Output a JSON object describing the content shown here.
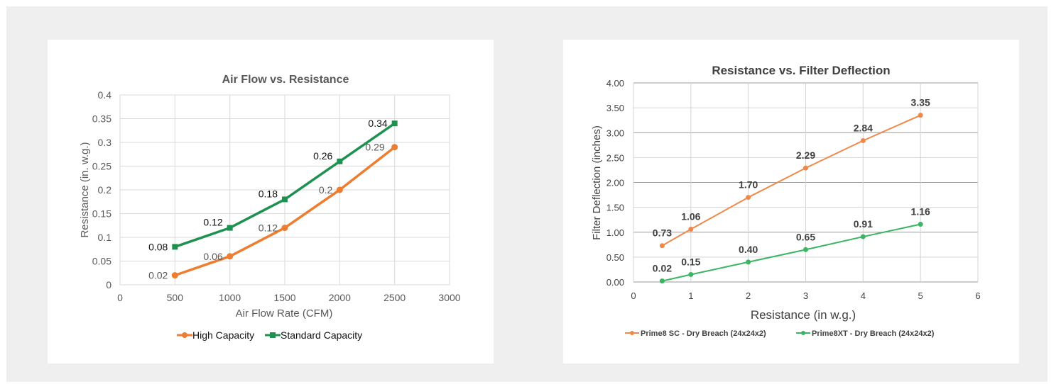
{
  "chart_data": [
    {
      "type": "line",
      "title": "Air Flow vs. Resistance",
      "xlabel": "Air Flow Rate (CFM)",
      "ylabel": "Resistance (in. w.g.)",
      "xlim": [
        0,
        3000
      ],
      "ylim": [
        0,
        0.4
      ],
      "xticks": [
        "0",
        "500",
        "1000",
        "1500",
        "2000",
        "2500",
        "3000"
      ],
      "yticks": [
        "0",
        "0.05",
        "0.1",
        "0.15",
        "0.2",
        "0.25",
        "0.3",
        "0.35",
        "0.4"
      ],
      "grid": true,
      "legend_position": "bottom",
      "series": [
        {
          "name": "High Capacity",
          "color": "#ed7d31",
          "marker": "circle",
          "x": [
            500,
            1000,
            1500,
            2000,
            2500
          ],
          "y": [
            0.02,
            0.06,
            0.12,
            0.2,
            0.29
          ],
          "labels": [
            "0.02",
            "0.06",
            "0.12",
            "0.2",
            "0.29"
          ]
        },
        {
          "name": "Standard Capacity",
          "color": "#1e9150",
          "marker": "square",
          "x": [
            500,
            1000,
            1500,
            2000,
            2500
          ],
          "y": [
            0.08,
            0.12,
            0.18,
            0.26,
            0.34
          ],
          "labels": [
            "0.08",
            "0.12",
            "0.18",
            "0.26",
            "0.34"
          ]
        }
      ]
    },
    {
      "type": "line",
      "title": "Resistance vs. Filter Deflection",
      "xlabel": "Resistance (in w.g.)",
      "ylabel": "Filter Deflection (inches)",
      "xlim": [
        0,
        6
      ],
      "ylim": [
        0,
        4
      ],
      "xticks": [
        "0",
        "1",
        "2",
        "3",
        "4",
        "5",
        "6"
      ],
      "yticks": [
        "0.00",
        "0.50",
        "1.00",
        "1.50",
        "2.00",
        "2.50",
        "3.00",
        "3.50",
        "4.00"
      ],
      "grid": true,
      "legend_position": "bottom",
      "series": [
        {
          "name": "Prime8 SC - Dry Breach (24x24x2)",
          "color": "#f0884a",
          "marker": "circle",
          "x": [
            0.5,
            1,
            2,
            3,
            4,
            5
          ],
          "y": [
            0.73,
            1.06,
            1.7,
            2.29,
            2.84,
            3.35
          ],
          "labels": [
            "0.73",
            "1.06",
            "1.70",
            "2.29",
            "2.84",
            "3.35"
          ]
        },
        {
          "name": "Prime8XT - Dry Breach (24x24x2)",
          "color": "#3cb563",
          "marker": "circle",
          "x": [
            0.5,
            1,
            2,
            3,
            4,
            5
          ],
          "y": [
            0.02,
            0.15,
            0.4,
            0.65,
            0.91,
            1.16
          ],
          "labels": [
            "0.02",
            "0.15",
            "0.40",
            "0.65",
            "0.91",
            "1.16"
          ]
        }
      ]
    }
  ]
}
